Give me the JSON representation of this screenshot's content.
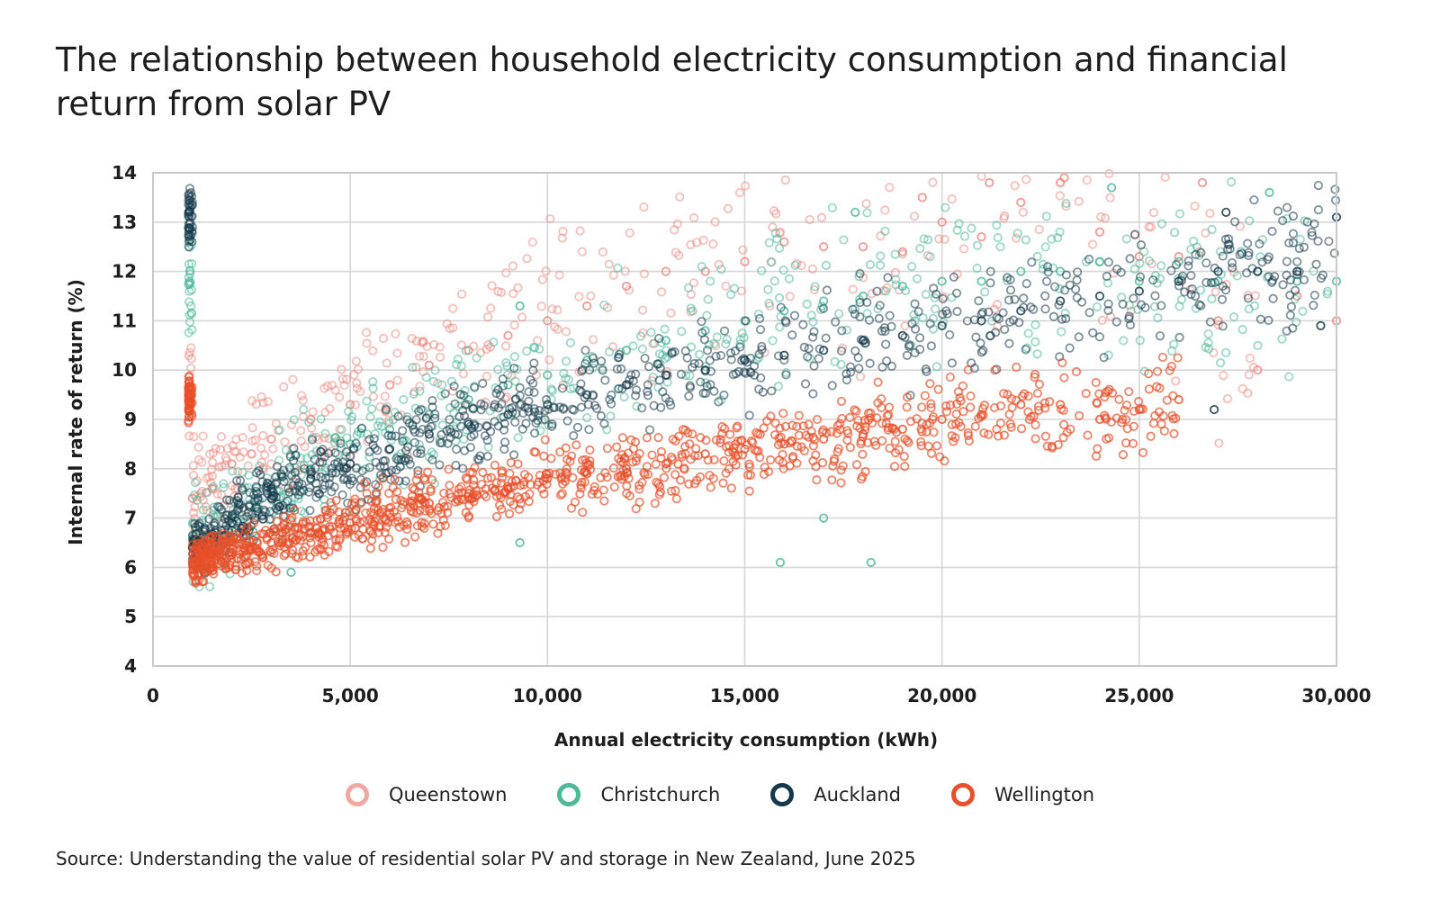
{
  "header": {
    "title": "The relationship between household electricity consumption and financial return from solar PV"
  },
  "source": "Source: Understanding the value of residential solar PV and storage in New Zealand, June 2025",
  "chart_data": {
    "type": "scatter",
    "title": "The relationship between household electricity consumption and financial return from solar PV",
    "xlabel": "Annual electricity consumption (kWh)",
    "ylabel": "Internal rate of return (%)",
    "xlim": [
      0,
      30000
    ],
    "ylim": [
      4,
      14
    ],
    "xticks": [
      0,
      5000,
      10000,
      15000,
      20000,
      25000,
      30000
    ],
    "xtick_labels": [
      "0",
      "5,000",
      "10,000",
      "15,000",
      "20,000",
      "25,000",
      "30,000"
    ],
    "yticks": [
      4,
      5,
      6,
      7,
      8,
      9,
      10,
      11,
      12,
      13,
      14
    ],
    "grid": true,
    "legend_position": "bottom",
    "series": [
      {
        "name": "Queenstown",
        "color": "#ee8a80",
        "marker": "hollow-circle",
        "points": [
          [
            1000,
            7.4
          ],
          [
            1500,
            7.6
          ],
          [
            2000,
            8.1
          ],
          [
            2500,
            8.3
          ],
          [
            3000,
            8.6
          ],
          [
            4000,
            9.0
          ],
          [
            5000,
            9.3
          ],
          [
            6000,
            9.7
          ],
          [
            7000,
            10.1
          ],
          [
            8000,
            10.4
          ],
          [
            9000,
            10.7
          ],
          [
            10000,
            11.0
          ],
          [
            11000,
            11.3
          ],
          [
            12000,
            11.7
          ],
          [
            13000,
            12.0
          ],
          [
            14000,
            12.0
          ],
          [
            15000,
            12.2
          ],
          [
            16000,
            12.6
          ],
          [
            17000,
            12.5
          ],
          [
            18000,
            12.5
          ],
          [
            19000,
            12.4
          ],
          [
            20000,
            13.0
          ],
          [
            21000,
            12.7
          ],
          [
            22000,
            13.4
          ],
          [
            23000,
            13.8
          ],
          [
            24000,
            12.8
          ],
          [
            25000,
            12.3
          ],
          [
            26000,
            12.3
          ],
          [
            27000,
            11.0
          ],
          [
            28000,
            10.0
          ],
          [
            29000,
            11.5
          ],
          [
            30000,
            11.0
          ],
          [
            19500,
            13.5
          ],
          [
            21200,
            13.8
          ],
          [
            26600,
            13.8
          ],
          [
            23100,
            13.9
          ]
        ]
      },
      {
        "name": "Christchurch",
        "color": "#4db89a",
        "marker": "hollow-circle",
        "points": [
          [
            1000,
            6.4
          ],
          [
            2000,
            7.0
          ],
          [
            3000,
            7.6
          ],
          [
            4000,
            8.0
          ],
          [
            5000,
            8.5
          ],
          [
            6000,
            8.8
          ],
          [
            7000,
            9.1
          ],
          [
            8000,
            9.4
          ],
          [
            9000,
            9.7
          ],
          [
            10000,
            9.9
          ],
          [
            11000,
            10.2
          ],
          [
            12000,
            10.4
          ],
          [
            13000,
            10.6
          ],
          [
            14000,
            10.8
          ],
          [
            15000,
            11.0
          ],
          [
            16000,
            11.2
          ],
          [
            17000,
            11.4
          ],
          [
            18000,
            11.5
          ],
          [
            19000,
            11.7
          ],
          [
            20000,
            11.8
          ],
          [
            21000,
            11.8
          ],
          [
            22000,
            12.0
          ],
          [
            23000,
            12.0
          ],
          [
            24000,
            12.2
          ],
          [
            25000,
            11.8
          ],
          [
            26000,
            12.2
          ],
          [
            27000,
            11.8
          ],
          [
            28000,
            12.0
          ],
          [
            29000,
            11.8
          ],
          [
            30000,
            11.8
          ],
          [
            9300,
            11.3
          ],
          [
            17800,
            13.2
          ],
          [
            24300,
            13.7
          ],
          [
            28300,
            13.6
          ],
          [
            15900,
            6.1
          ],
          [
            18200,
            6.1
          ],
          [
            17000,
            7.0
          ],
          [
            9300,
            6.5
          ],
          [
            3500,
            5.9
          ]
        ]
      },
      {
        "name": "Auckland",
        "color": "#14394a",
        "marker": "hollow-circle",
        "points": [
          [
            1000,
            6.4
          ],
          [
            2000,
            6.9
          ],
          [
            3000,
            7.4
          ],
          [
            4000,
            7.8
          ],
          [
            5000,
            8.1
          ],
          [
            6000,
            8.4
          ],
          [
            7000,
            8.7
          ],
          [
            8000,
            8.9
          ],
          [
            9000,
            9.1
          ],
          [
            10000,
            9.3
          ],
          [
            11000,
            9.5
          ],
          [
            12000,
            9.7
          ],
          [
            13000,
            9.9
          ],
          [
            14000,
            10.0
          ],
          [
            15000,
            10.2
          ],
          [
            16000,
            10.3
          ],
          [
            17000,
            10.4
          ],
          [
            18000,
            10.6
          ],
          [
            19000,
            10.7
          ],
          [
            20000,
            10.9
          ],
          [
            21000,
            11.0
          ],
          [
            22000,
            11.2
          ],
          [
            23000,
            11.4
          ],
          [
            24000,
            11.5
          ],
          [
            25000,
            11.6
          ],
          [
            26000,
            11.8
          ],
          [
            27000,
            12.0
          ],
          [
            28000,
            12.0
          ],
          [
            29000,
            12.0
          ],
          [
            30000,
            13.1
          ],
          [
            27200,
            13.2
          ],
          [
            26900,
            9.2
          ],
          [
            29600,
            10.9
          ]
        ]
      },
      {
        "name": "Wellington",
        "color": "#e8502a",
        "marker": "hollow-circle",
        "points": [
          [
            1000,
            6.1
          ],
          [
            2000,
            6.3
          ],
          [
            3000,
            6.5
          ],
          [
            4000,
            6.7
          ],
          [
            5000,
            6.9
          ],
          [
            6000,
            7.1
          ],
          [
            7000,
            7.3
          ],
          [
            8000,
            7.5
          ],
          [
            9000,
            7.6
          ],
          [
            10000,
            7.8
          ],
          [
            11000,
            7.9
          ],
          [
            12000,
            8.0
          ],
          [
            13000,
            8.1
          ],
          [
            14000,
            8.3
          ],
          [
            15000,
            8.4
          ],
          [
            16000,
            8.5
          ],
          [
            17000,
            8.6
          ],
          [
            18000,
            8.7
          ],
          [
            19000,
            8.8
          ],
          [
            20000,
            9.0
          ],
          [
            21000,
            9.1
          ],
          [
            22000,
            9.3
          ],
          [
            23000,
            9.3
          ],
          [
            24000,
            9.0
          ],
          [
            25000,
            9.2
          ],
          [
            26000,
            9.4
          ]
        ]
      }
    ]
  }
}
